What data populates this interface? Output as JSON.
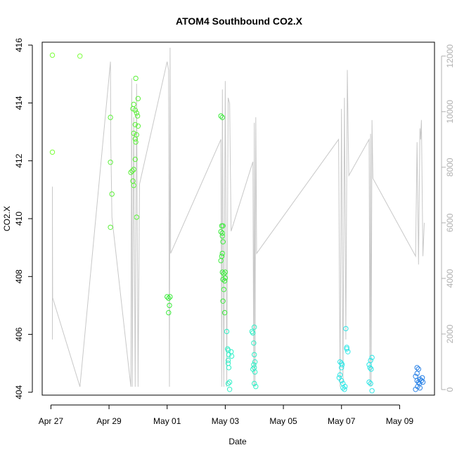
{
  "chart_data": {
    "type": "scatter",
    "title": "ATOM4 Southbound CO2.X",
    "xlabel": "Date",
    "ylabel": "CO2.X",
    "x_tick_labels": [
      "Apr 27",
      "Apr 29",
      "May 01",
      "May 03",
      "May 05",
      "May 07",
      "May 09"
    ],
    "x_tick_days": [
      0,
      2,
      4,
      6,
      8,
      10,
      12
    ],
    "xlim_days": [
      -0.3,
      13.2
    ],
    "ylim": [
      403.9,
      416.1
    ],
    "y_ticks": [
      404,
      406,
      408,
      410,
      412,
      414,
      416
    ],
    "y2lim": [
      -200,
      12500
    ],
    "y2_ticks": [
      0,
      2000,
      4000,
      6000,
      8000,
      10000,
      12000
    ],
    "grid": false,
    "legend": "none",
    "colors": {
      "axis": "#000000",
      "secondary_axis": "#b0b0b0",
      "line": "#c8c8c8"
    },
    "series": [
      {
        "color": "#7cff3c",
        "points": [
          [
            0.05,
            415.65
          ],
          [
            0.05,
            412.3
          ],
          [
            1.0,
            415.62
          ]
        ]
      },
      {
        "color": "#5cf03a",
        "points": [
          [
            2.05,
            413.5
          ],
          [
            2.05,
            411.95
          ],
          [
            2.1,
            410.85
          ],
          [
            2.05,
            409.7
          ],
          [
            2.75,
            411.6
          ],
          [
            2.8,
            411.65
          ],
          [
            2.85,
            411.7
          ],
          [
            2.82,
            411.3
          ],
          [
            2.85,
            411.15
          ],
          [
            2.9,
            412.05
          ],
          [
            2.95,
            410.05
          ],
          [
            2.82,
            413.8
          ],
          [
            2.85,
            413.95
          ],
          [
            2.9,
            413.75
          ],
          [
            2.95,
            413.65
          ],
          [
            2.98,
            413.55
          ],
          [
            2.85,
            412.95
          ],
          [
            2.9,
            412.75
          ],
          [
            2.92,
            412.65
          ],
          [
            2.95,
            412.9
          ],
          [
            2.9,
            413.25
          ],
          [
            3.0,
            413.2
          ],
          [
            2.92,
            414.85
          ],
          [
            3.0,
            414.15
          ]
        ]
      },
      {
        "color": "#3cec3c",
        "points": [
          [
            4.0,
            407.3
          ],
          [
            4.05,
            407.25
          ],
          [
            4.1,
            407.3
          ],
          [
            4.08,
            407.0
          ],
          [
            4.05,
            406.75
          ],
          [
            5.85,
            413.55
          ],
          [
            5.9,
            413.5
          ],
          [
            5.85,
            409.55
          ],
          [
            5.9,
            409.5
          ],
          [
            5.88,
            409.75
          ],
          [
            5.92,
            409.75
          ],
          [
            5.9,
            409.4
          ],
          [
            5.92,
            409.2
          ],
          [
            5.9,
            408.8
          ],
          [
            5.88,
            408.7
          ],
          [
            5.85,
            408.55
          ],
          [
            5.9,
            408.15
          ],
          [
            5.95,
            408.1
          ],
          [
            5.92,
            407.9
          ],
          [
            5.98,
            407.85
          ],
          [
            5.95,
            407.55
          ],
          [
            5.92,
            407.15
          ],
          [
            5.98,
            406.75
          ],
          [
            6.0,
            408.15
          ],
          [
            6.0,
            407.95
          ]
        ]
      },
      {
        "color": "#33f0c8",
        "points": [
          [
            6.05,
            406.1
          ],
          [
            6.08,
            405.5
          ],
          [
            6.1,
            405.45
          ],
          [
            6.12,
            405.3
          ],
          [
            6.1,
            405.0
          ],
          [
            6.12,
            404.85
          ],
          [
            6.15,
            404.35
          ],
          [
            6.1,
            404.3
          ],
          [
            6.15,
            404.1
          ],
          [
            6.2,
            405.4
          ],
          [
            6.22,
            405.25
          ],
          [
            6.1,
            405.1
          ],
          [
            6.92,
            406.1
          ],
          [
            6.95,
            406.05
          ],
          [
            7.0,
            406.25
          ],
          [
            6.98,
            405.7
          ],
          [
            7.0,
            405.3
          ],
          [
            7.02,
            405.05
          ],
          [
            6.98,
            404.95
          ],
          [
            7.0,
            404.85
          ],
          [
            7.02,
            404.7
          ],
          [
            6.95,
            404.8
          ],
          [
            7.0,
            404.3
          ],
          [
            7.05,
            404.2
          ]
        ]
      },
      {
        "color": "#2ee6e6",
        "points": [
          [
            9.92,
            404.5
          ],
          [
            9.95,
            404.6
          ],
          [
            10.0,
            404.4
          ],
          [
            9.95,
            405.05
          ],
          [
            10.0,
            405.0
          ],
          [
            10.0,
            404.85
          ],
          [
            10.02,
            404.95
          ],
          [
            10.05,
            404.15
          ],
          [
            10.1,
            404.1
          ],
          [
            10.05,
            404.3
          ],
          [
            10.12,
            404.2
          ],
          [
            10.15,
            406.2
          ],
          [
            10.18,
            405.55
          ],
          [
            10.22,
            405.4
          ],
          [
            10.18,
            405.5
          ],
          [
            10.95,
            404.95
          ],
          [
            11.0,
            405.1
          ],
          [
            11.05,
            405.2
          ],
          [
            10.98,
            404.85
          ],
          [
            11.02,
            404.8
          ],
          [
            10.95,
            404.35
          ],
          [
            11.0,
            404.3
          ],
          [
            11.05,
            404.05
          ]
        ]
      },
      {
        "color": "#2a82e6",
        "points": [
          [
            12.55,
            404.55
          ],
          [
            12.6,
            404.85
          ],
          [
            12.65,
            404.8
          ],
          [
            12.6,
            404.65
          ],
          [
            12.7,
            404.45
          ],
          [
            12.65,
            404.35
          ],
          [
            12.6,
            404.4
          ],
          [
            12.68,
            404.3
          ],
          [
            12.62,
            404.2
          ],
          [
            12.7,
            404.15
          ],
          [
            12.75,
            404.4
          ],
          [
            12.8,
            404.35
          ],
          [
            12.78,
            404.5
          ],
          [
            12.55,
            404.1
          ]
        ]
      }
    ],
    "flow_line": {
      "color": "#c8c8c8",
      "points": [
        [
          0.05,
          1800
        ],
        [
          0.05,
          7300
        ],
        [
          0.06,
          3300
        ],
        [
          1.0,
          100
        ],
        [
          2.05,
          11800
        ],
        [
          2.06,
          9000
        ],
        [
          2.08,
          7600
        ],
        [
          2.1,
          6200
        ],
        [
          2.75,
          100
        ],
        [
          2.78,
          11200
        ],
        [
          2.8,
          100
        ],
        [
          2.85,
          9800
        ],
        [
          2.9,
          100
        ],
        [
          2.95,
          11000
        ],
        [
          3.0,
          100
        ],
        [
          3.05,
          7400
        ],
        [
          4.0,
          11800
        ],
        [
          4.05,
          11500
        ],
        [
          4.08,
          100
        ],
        [
          4.1,
          12300
        ],
        [
          4.12,
          4900
        ],
        [
          5.85,
          9000
        ],
        [
          5.88,
          100
        ],
        [
          5.9,
          10800
        ],
        [
          5.95,
          100
        ],
        [
          6.0,
          11100
        ],
        [
          6.05,
          100
        ],
        [
          6.1,
          10500
        ],
        [
          6.15,
          10300
        ],
        [
          6.2,
          5700
        ],
        [
          6.95,
          8200
        ],
        [
          6.98,
          100
        ],
        [
          7.0,
          9600
        ],
        [
          7.02,
          100
        ],
        [
          7.05,
          9800
        ],
        [
          7.08,
          4900
        ],
        [
          9.9,
          9000
        ],
        [
          9.95,
          100
        ],
        [
          10.0,
          10100
        ],
        [
          10.05,
          200
        ],
        [
          10.1,
          10500
        ],
        [
          10.15,
          1800
        ],
        [
          10.2,
          11500
        ],
        [
          10.25,
          7700
        ],
        [
          10.95,
          9000
        ],
        [
          10.98,
          100
        ],
        [
          11.0,
          9200
        ],
        [
          11.02,
          100
        ],
        [
          11.05,
          9700
        ],
        [
          11.08,
          7600
        ],
        [
          12.55,
          4800
        ],
        [
          12.6,
          8900
        ],
        [
          12.65,
          4500
        ],
        [
          12.7,
          9400
        ],
        [
          12.72,
          9000
        ],
        [
          12.75,
          9700
        ],
        [
          12.8,
          4800
        ],
        [
          12.85,
          6000
        ]
      ]
    }
  }
}
